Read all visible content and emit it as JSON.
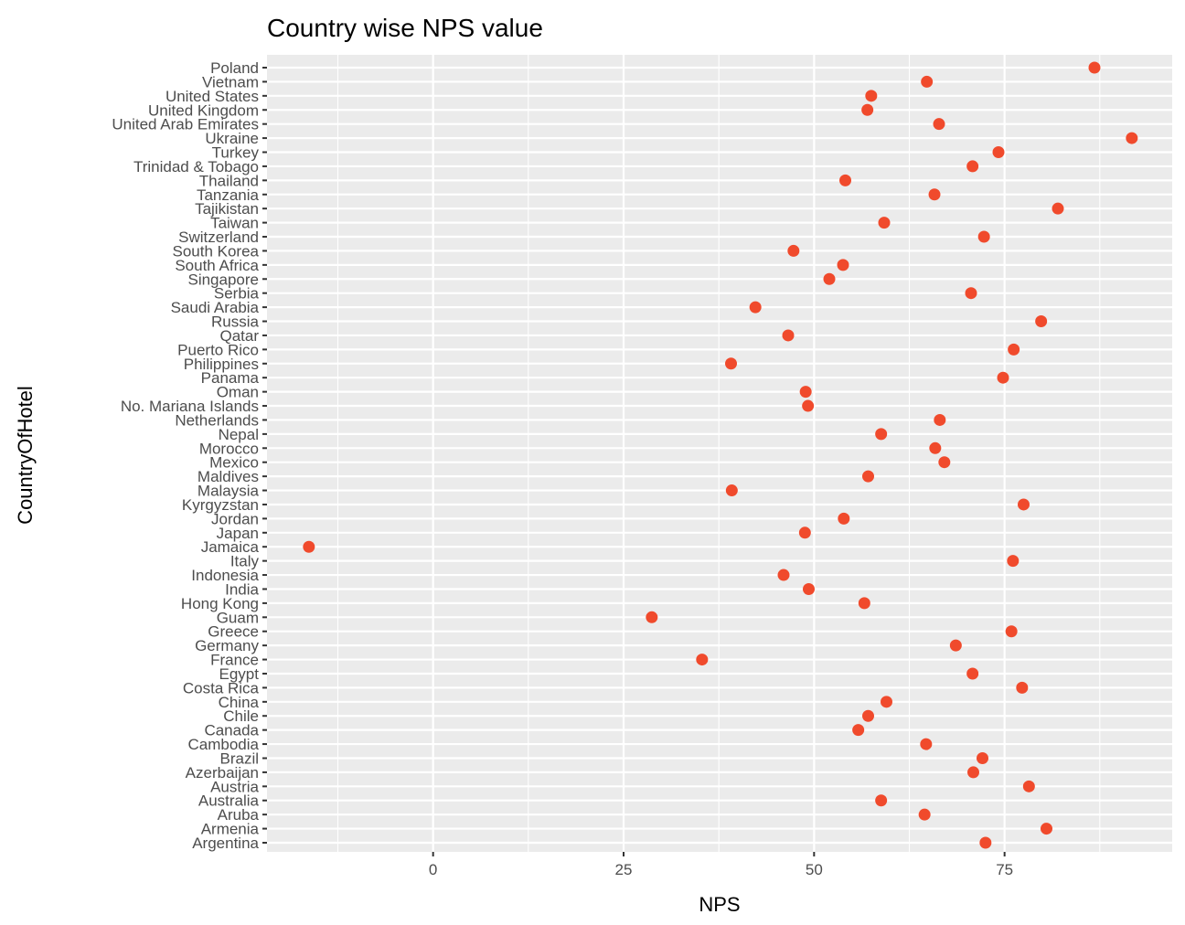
{
  "chart_data": {
    "type": "scatter",
    "title": "Country wise NPS value",
    "xlabel": "NPS",
    "ylabel": "CountryOfHotel",
    "xlim": [
      -21.8,
      97
    ],
    "x_ticks": [
      0,
      25,
      50,
      75
    ],
    "grid": true,
    "legend": "none",
    "point_color": "#f04a2c",
    "panel_color": "#ebebeb",
    "grid_color": "#ffffff",
    "categories": [
      "Argentina",
      "Armenia",
      "Aruba",
      "Australia",
      "Austria",
      "Azerbaijan",
      "Brazil",
      "Cambodia",
      "Canada",
      "Chile",
      "China",
      "Costa Rica",
      "Egypt",
      "France",
      "Germany",
      "Greece",
      "Guam",
      "Hong Kong",
      "India",
      "Indonesia",
      "Italy",
      "Jamaica",
      "Japan",
      "Jordan",
      "Kyrgyzstan",
      "Malaysia",
      "Maldives",
      "Mexico",
      "Morocco",
      "Nepal",
      "Netherlands",
      "No. Mariana Islands",
      "Oman",
      "Panama",
      "Philippines",
      "Puerto Rico",
      "Qatar",
      "Russia",
      "Saudi Arabia",
      "Serbia",
      "Singapore",
      "South Africa",
      "South Korea",
      "Switzerland",
      "Taiwan",
      "Tajikistan",
      "Tanzania",
      "Thailand",
      "Trinidad & Tobago",
      "Turkey",
      "Ukraine",
      "United Arab Emirates",
      "United Kingdom",
      "United States",
      "Vietnam",
      "Poland"
    ],
    "values": [
      72.5,
      80.5,
      64.5,
      58.8,
      78.2,
      70.9,
      72.1,
      64.7,
      55.8,
      57.1,
      59.5,
      77.3,
      70.8,
      35.3,
      68.6,
      75.9,
      28.7,
      56.6,
      49.3,
      46.0,
      76.1,
      -16.3,
      48.8,
      53.9,
      77.5,
      39.2,
      57.1,
      67.1,
      65.9,
      58.8,
      66.5,
      49.2,
      48.9,
      74.8,
      39.1,
      76.2,
      46.6,
      79.8,
      42.3,
      70.6,
      52.0,
      53.8,
      47.3,
      72.3,
      59.2,
      82.0,
      65.8,
      54.1,
      70.8,
      74.2,
      91.7,
      66.4,
      57.0,
      57.5,
      64.8,
      86.8
    ]
  }
}
